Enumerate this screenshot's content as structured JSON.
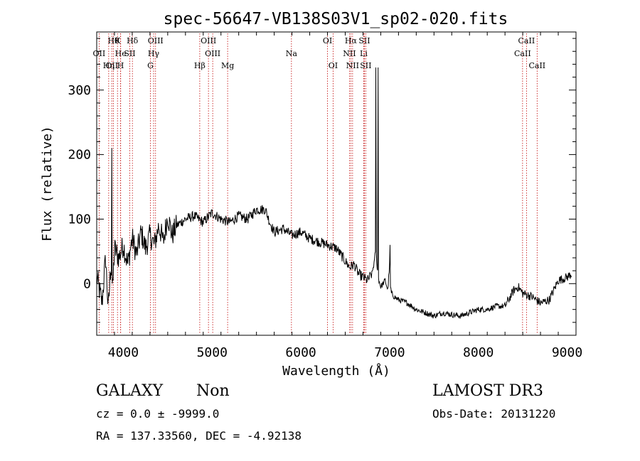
{
  "chart_data": {
    "type": "line",
    "title": "spec-56647-VB138S03V1_sp02-020.fits",
    "xlabel": "Wavelength (Å)",
    "ylabel": "Flux (relative)",
    "xlim": [
      3700,
      9100
    ],
    "ylim": [
      -80,
      390
    ],
    "x_ticks": [
      4000,
      5000,
      6000,
      7000,
      8000,
      9000
    ],
    "y_ticks": [
      0,
      100,
      200,
      300
    ],
    "line_color": "#000000",
    "marker_color": "#c00000",
    "series": [
      {
        "name": "spectrum",
        "x": [
          3700,
          3760,
          3800,
          3830,
          3860,
          3880,
          3900,
          3950,
          4000,
          4050,
          4100,
          4150,
          4200,
          4250,
          4300,
          4350,
          4400,
          4450,
          4500,
          4550,
          4600,
          4700,
          4800,
          4900,
          5000,
          5100,
          5200,
          5300,
          5400,
          5500,
          5600,
          5650,
          5700,
          5800,
          5900,
          6000,
          6100,
          6200,
          6300,
          6400,
          6500,
          6550,
          6600,
          6650,
          6700,
          6750,
          6800,
          6830,
          6845,
          6860,
          6880,
          6900,
          6950,
          6980,
          7000,
          7010,
          7020,
          7050,
          7100,
          7200,
          7300,
          7400,
          7500,
          7600,
          7700,
          7800,
          7900,
          8000,
          8100,
          8200,
          8300,
          8400,
          8450,
          8500,
          8600,
          8700,
          8800,
          8900,
          9000,
          9050
        ],
        "y": [
          10,
          -30,
          40,
          -40,
          30,
          -10,
          55,
          40,
          60,
          30,
          70,
          45,
          80,
          55,
          75,
          60,
          90,
          65,
          105,
          75,
          90,
          100,
          105,
          95,
          110,
          100,
          95,
          105,
          100,
          115,
          115,
          95,
          80,
          85,
          75,
          80,
          70,
          65,
          60,
          55,
          35,
          25,
          30,
          15,
          10,
          5,
          15,
          35,
          60,
          25,
          5,
          -5,
          5,
          -10,
          30,
          -5,
          -15,
          -20,
          -25,
          -30,
          -40,
          -45,
          -50,
          -45,
          -48,
          -50,
          -45,
          -40,
          -40,
          -35,
          -35,
          -10,
          -5,
          -15,
          -20,
          -30,
          -25,
          5,
          10,
          15
        ]
      }
    ],
    "spikes": [
      {
        "x": 3870,
        "y": 210
      },
      {
        "x": 6845,
        "y": 335
      },
      {
        "x": 6872,
        "y": 335
      },
      {
        "x": 7003,
        "y": 60
      }
    ],
    "lines": [
      {
        "name": "OII",
        "wave": 3727,
        "row": 2
      },
      {
        "name": "OII",
        "wave": 3870,
        "row": 3
      },
      {
        "name": "Hθ",
        "wave": 3889,
        "row": 1
      },
      {
        "name": "He",
        "wave": 3970,
        "row": 2
      },
      {
        "name": "Hη",
        "wave": 3835,
        "row": 3
      },
      {
        "name": "K",
        "wave": 3934,
        "row": 1
      },
      {
        "name": "H",
        "wave": 3969,
        "row": 3
      },
      {
        "name": "Hδ",
        "wave": 4102,
        "row": 1
      },
      {
        "name": "SII",
        "wave": 4072,
        "row": 2
      },
      {
        "name": "OIII",
        "wave": 4363,
        "row": 1
      },
      {
        "name": "Hγ",
        "wave": 4341,
        "row": 2
      },
      {
        "name": "G",
        "wave": 4305,
        "row": 3
      },
      {
        "name": "OIII",
        "wave": 4959,
        "row": 1
      },
      {
        "name": "OIII",
        "wave": 5007,
        "row": 2
      },
      {
        "name": "Hβ",
        "wave": 4861,
        "row": 3
      },
      {
        "name": "Mg",
        "wave": 5175,
        "row": 3
      },
      {
        "name": "Na",
        "wave": 5894,
        "row": 2
      },
      {
        "name": "OI",
        "wave": 6300,
        "row": 1
      },
      {
        "name": "OI",
        "wave": 6363,
        "row": 3
      },
      {
        "name": "Hα",
        "wave": 6563,
        "row": 1
      },
      {
        "name": "SII",
        "wave": 6716,
        "row": 1
      },
      {
        "name": "NII",
        "wave": 6548,
        "row": 2
      },
      {
        "name": "Li",
        "wave": 6708,
        "row": 2
      },
      {
        "name": "NII",
        "wave": 6583,
        "row": 3
      },
      {
        "name": "SII",
        "wave": 6731,
        "row": 3
      },
      {
        "name": "CaII",
        "wave": 8542,
        "row": 1
      },
      {
        "name": "CaII",
        "wave": 8498,
        "row": 2
      },
      {
        "name": "CaII",
        "wave": 8662,
        "row": 3
      }
    ]
  },
  "info": {
    "object_type": "GALAXY",
    "subclass": "Non",
    "survey": "LAMOST DR3",
    "cz": "cz = 0.0 ± -9999.0",
    "obs_date": "Obs-Date: 20131220",
    "coords": "RA = 137.33560, DEC =  -4.92138"
  }
}
